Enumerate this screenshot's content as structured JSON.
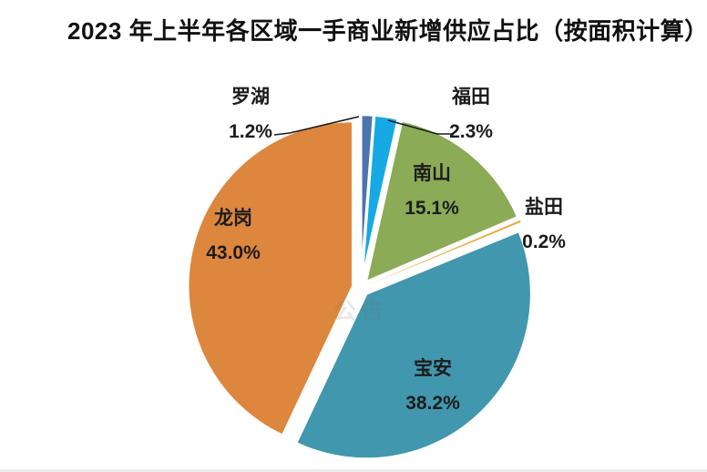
{
  "title": "2023 年上半年各区域一手商业新增供应占比（按面积计算）",
  "watermark": {
    "text": "公告"
  },
  "chart_data": {
    "type": "pie",
    "title": "2023 年上半年各区域一手商业新增供应占比（按面积计算）",
    "unit": "percent",
    "direction": "clockwise",
    "start_angle_deg": 0,
    "exploded": true,
    "legend": "none",
    "slices": [
      {
        "label": "罗湖",
        "value": 1.2,
        "display": "1.2%",
        "color": "#4C74AE",
        "label_position": "outside-left"
      },
      {
        "label": "福田",
        "value": 2.3,
        "display": "2.3%",
        "color": "#16A9E4",
        "label_position": "outside-right"
      },
      {
        "label": "南山",
        "value": 15.1,
        "display": "15.1%",
        "color": "#8BAB57",
        "label_position": "inside"
      },
      {
        "label": "盐田",
        "value": 0.2,
        "display": "0.2%",
        "color": "#EDA93A",
        "label_position": "outside-right"
      },
      {
        "label": "宝安",
        "value": 38.2,
        "display": "38.2%",
        "color": "#4197AE",
        "label_position": "inside"
      },
      {
        "label": "龙岗",
        "value": 43.0,
        "display": "43.0%",
        "color": "#DD863E",
        "label_position": "inside"
      }
    ]
  }
}
